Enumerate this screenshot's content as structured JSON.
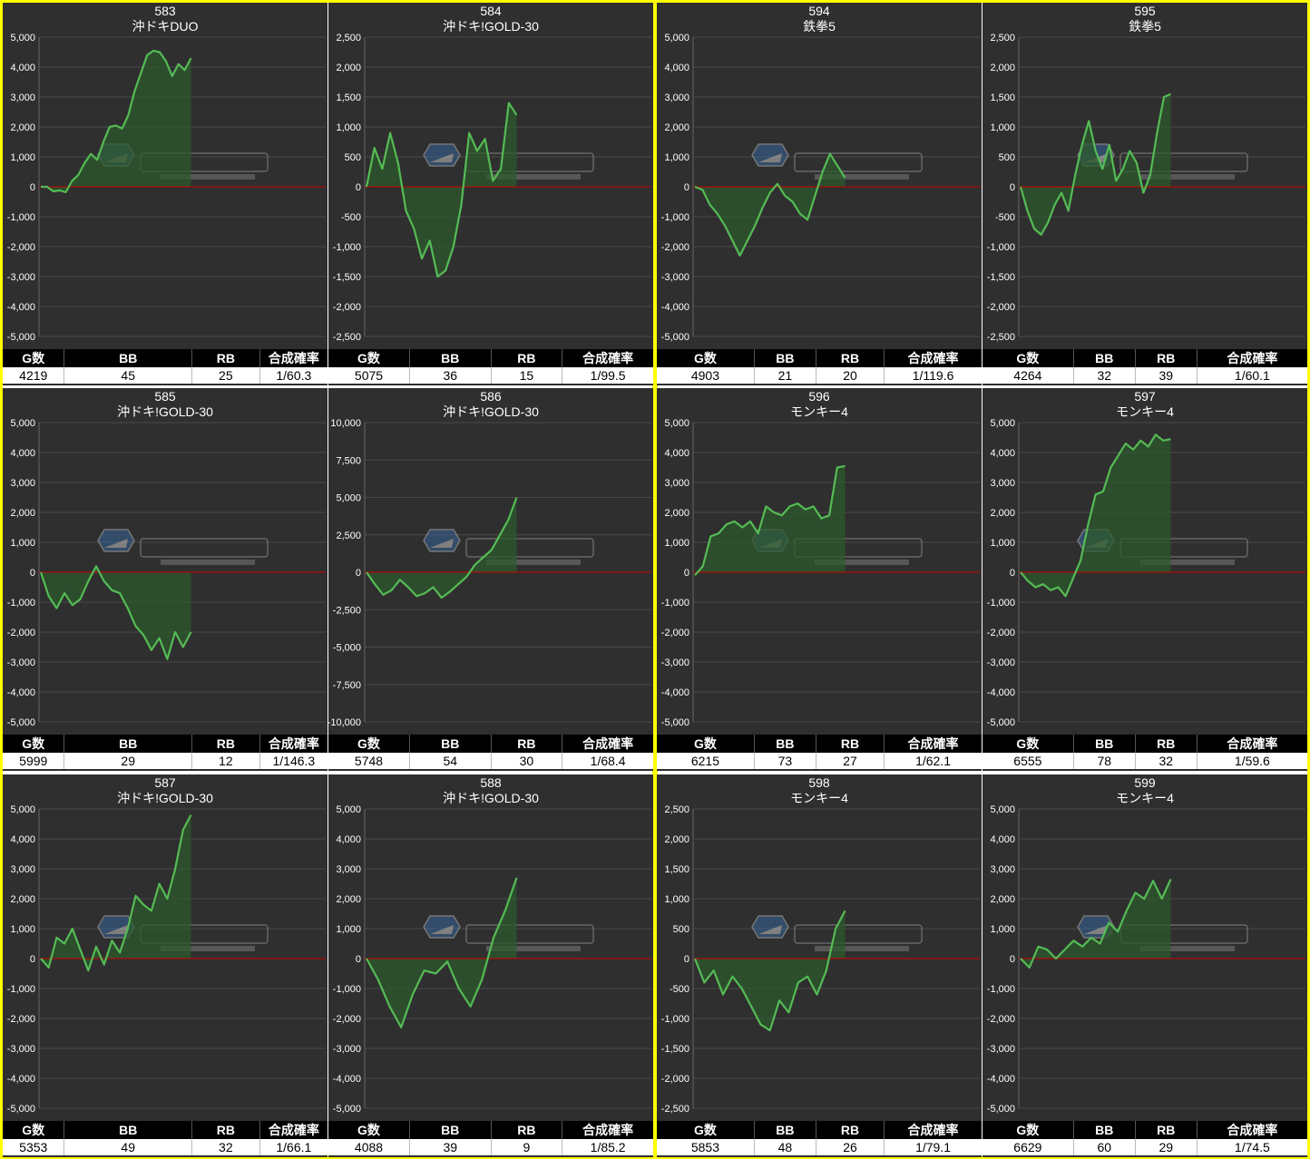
{
  "colors": {
    "panel_bg": "#2f2f2f",
    "grid": "#4a4a4a",
    "zero_line": "#cc0000",
    "series_line": "#55bb55",
    "series_fill": "#2c5a2c",
    "group_border": "#ffff00"
  },
  "stats_headers": [
    "G数",
    "BB",
    "RB",
    "合成確率"
  ],
  "chart_data": [
    {
      "type": "area",
      "machine_no": "583",
      "model": "沖ドキDUO",
      "ylim": [
        -5000,
        5000
      ],
      "yticks": [
        5000,
        4000,
        3000,
        2000,
        1000,
        0,
        -1000,
        -2000,
        -3000,
        -4000,
        -5000
      ],
      "y": [
        0,
        0,
        -150,
        -120,
        -180,
        200,
        400,
        800,
        1100,
        900,
        1500,
        2000,
        2050,
        1950,
        2400,
        3200,
        3800,
        4400,
        4550,
        4500,
        4200,
        3700,
        4100,
        3900,
        4300
      ],
      "stats": [
        "4219",
        "45",
        "25",
        "1/60.3"
      ]
    },
    {
      "type": "area",
      "machine_no": "584",
      "model": "沖ドキ!GOLD-30",
      "ylim": [
        -2500,
        2500
      ],
      "yticks": [
        2500,
        2000,
        1500,
        1000,
        500,
        0,
        -500,
        -1000,
        -1500,
        -2000,
        -2500
      ],
      "y": [
        0,
        650,
        300,
        900,
        400,
        -400,
        -700,
        -1200,
        -900,
        -1500,
        -1400,
        -1000,
        -300,
        900,
        600,
        800,
        100,
        300,
        1400,
        1200
      ],
      "stats": [
        "5075",
        "36",
        "15",
        "1/99.5"
      ]
    },
    {
      "type": "area",
      "machine_no": "594",
      "model": "鉄拳5",
      "ylim": [
        -5000,
        5000
      ],
      "yticks": [
        5000,
        4000,
        3000,
        2000,
        1000,
        0,
        -1000,
        -2000,
        -3000,
        -4000,
        -5000
      ],
      "y": [
        0,
        -100,
        -600,
        -900,
        -1300,
        -1800,
        -2300,
        -1800,
        -1300,
        -700,
        -200,
        100,
        -300,
        -500,
        -900,
        -1100,
        -300,
        500,
        1100,
        700,
        300
      ],
      "stats": [
        "4903",
        "21",
        "20",
        "1/119.6"
      ]
    },
    {
      "type": "area",
      "machine_no": "595",
      "model": "鉄拳5",
      "ylim": [
        -2500,
        2500
      ],
      "yticks": [
        2500,
        2000,
        1500,
        1000,
        500,
        0,
        -500,
        -1000,
        -1500,
        -2000,
        -2500
      ],
      "y": [
        0,
        -400,
        -700,
        -800,
        -600,
        -300,
        -100,
        -400,
        200,
        700,
        1100,
        600,
        300,
        700,
        100,
        300,
        600,
        400,
        -100,
        200,
        900,
        1500,
        1550
      ],
      "stats": [
        "4264",
        "32",
        "39",
        "1/60.1"
      ]
    },
    {
      "type": "area",
      "machine_no": "585",
      "model": "沖ドキ!GOLD-30",
      "ylim": [
        -5000,
        5000
      ],
      "yticks": [
        5000,
        4000,
        3000,
        2000,
        1000,
        0,
        -1000,
        -2000,
        -3000,
        -4000,
        -5000
      ],
      "y": [
        0,
        -800,
        -1200,
        -700,
        -1100,
        -900,
        -300,
        200,
        -300,
        -600,
        -700,
        -1200,
        -1800,
        -2100,
        -2600,
        -2200,
        -2900,
        -2000,
        -2500,
        -2000
      ],
      "stats": [
        "5999",
        "29",
        "12",
        "1/146.3"
      ]
    },
    {
      "type": "area",
      "machine_no": "586",
      "model": "沖ドキ!GOLD-30",
      "ylim": [
        -10000,
        10000
      ],
      "yticks": [
        10000,
        7500,
        5000,
        2500,
        0,
        -2500,
        -5000,
        -7500,
        -10000
      ],
      "y": [
        0,
        -800,
        -1500,
        -1200,
        -500,
        -1000,
        -1600,
        -1400,
        -1000,
        -1700,
        -1300,
        -800,
        -300,
        500,
        1000,
        1500,
        2500,
        3500,
        5000
      ],
      "stats": [
        "5748",
        "54",
        "30",
        "1/68.4"
      ]
    },
    {
      "type": "area",
      "machine_no": "596",
      "model": "モンキー4",
      "ylim": [
        -5000,
        5000
      ],
      "yticks": [
        5000,
        4000,
        3000,
        2000,
        1000,
        0,
        -1000,
        -2000,
        -3000,
        -4000,
        -5000
      ],
      "y": [
        -100,
        200,
        1200,
        1300,
        1600,
        1700,
        1500,
        1700,
        1300,
        2200,
        2000,
        1900,
        2200,
        2300,
        2100,
        2200,
        1800,
        1900,
        3500,
        3550
      ],
      "stats": [
        "6215",
        "73",
        "27",
        "1/62.1"
      ]
    },
    {
      "type": "area",
      "machine_no": "597",
      "model": "モンキー4",
      "ylim": [
        -5000,
        5000
      ],
      "yticks": [
        5000,
        4000,
        3000,
        2000,
        1000,
        0,
        -1000,
        -2000,
        -3000,
        -4000,
        -5000
      ],
      "y": [
        0,
        -300,
        -500,
        -400,
        -600,
        -500,
        -800,
        -200,
        400,
        1600,
        2600,
        2700,
        3500,
        3900,
        4300,
        4100,
        4400,
        4200,
        4600,
        4400,
        4450
      ],
      "stats": [
        "6555",
        "78",
        "32",
        "1/59.6"
      ]
    },
    {
      "type": "area",
      "machine_no": "587",
      "model": "沖ドキ!GOLD-30",
      "ylim": [
        -5000,
        5000
      ],
      "yticks": [
        5000,
        4000,
        3000,
        2000,
        1000,
        0,
        -1000,
        -2000,
        -3000,
        -4000,
        -5000
      ],
      "y": [
        0,
        -300,
        700,
        500,
        1000,
        300,
        -400,
        400,
        -200,
        600,
        200,
        1000,
        2100,
        1800,
        1600,
        2500,
        2000,
        3000,
        4300,
        4800
      ],
      "stats": [
        "5353",
        "49",
        "32",
        "1/66.1"
      ]
    },
    {
      "type": "area",
      "machine_no": "588",
      "model": "沖ドキ!GOLD-30",
      "ylim": [
        -5000,
        5000
      ],
      "yticks": [
        5000,
        4000,
        3000,
        2000,
        1000,
        0,
        -1000,
        -2000,
        -3000,
        -4000,
        -5000
      ],
      "y": [
        0,
        -700,
        -1600,
        -2300,
        -1200,
        -400,
        -500,
        -100,
        -1000,
        -1600,
        -700,
        700,
        1600,
        2700
      ],
      "stats": [
        "4088",
        "39",
        "9",
        "1/85.2"
      ]
    },
    {
      "type": "area",
      "machine_no": "598",
      "model": "モンキー4",
      "ylim": [
        -2500,
        2500
      ],
      "yticks": [
        2500,
        2000,
        1500,
        1000,
        500,
        0,
        -500,
        -1000,
        -1500,
        -2000,
        -2500
      ],
      "y": [
        0,
        -400,
        -200,
        -600,
        -300,
        -500,
        -800,
        -1100,
        -1200,
        -700,
        -900,
        -400,
        -300,
        -600,
        -200,
        500,
        800
      ],
      "stats": [
        "5853",
        "48",
        "26",
        "1/79.1"
      ]
    },
    {
      "type": "area",
      "machine_no": "599",
      "model": "モンキー4",
      "ylim": [
        -5000,
        5000
      ],
      "yticks": [
        5000,
        4000,
        3000,
        2000,
        1000,
        0,
        -1000,
        -2000,
        -3000,
        -4000,
        -5000
      ],
      "y": [
        0,
        -300,
        400,
        300,
        0,
        300,
        600,
        400,
        700,
        500,
        1200,
        900,
        1600,
        2200,
        2000,
        2600,
        2000,
        2650
      ],
      "stats": [
        "6629",
        "60",
        "29",
        "1/74.5"
      ]
    }
  ]
}
